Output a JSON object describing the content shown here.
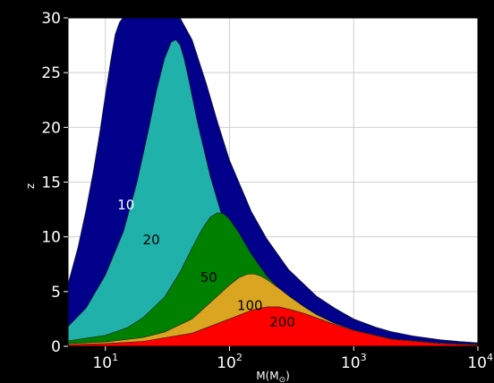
{
  "chart_data": {
    "type": "area",
    "xlabel": "M(M",
    "xlabel_sub": "⊙",
    "xlabel_close": ")",
    "ylabel": "z",
    "x_scale": "log",
    "xlim": [
      5,
      10000
    ],
    "ylim": [
      0,
      30
    ],
    "grid": true,
    "x_ticks": [
      {
        "base": "10",
        "exp": "1",
        "value": 10
      },
      {
        "base": "10",
        "exp": "2",
        "value": 100
      },
      {
        "base": "10",
        "exp": "3",
        "value": 1000
      },
      {
        "base": "10",
        "exp": "4",
        "value": 10000
      }
    ],
    "y_ticks": [
      "0",
      "5",
      "10",
      "15",
      "20",
      "25",
      "30"
    ],
    "series": [
      {
        "name": "10",
        "color": "#00008b",
        "label_color": "#ffffff",
        "label_at": [
          12.5,
          12.5
        ],
        "x": [
          5,
          6,
          7,
          8,
          9,
          10,
          11,
          12,
          13,
          13.8,
          14.5,
          26,
          28,
          30,
          34,
          40,
          50,
          65,
          80,
          100,
          150,
          200,
          300,
          500,
          700,
          1000,
          1500,
          2000,
          3000,
          5000,
          7000,
          10000
        ],
        "y": [
          5.7,
          9,
          12.5,
          16,
          19.5,
          23,
          26,
          28.5,
          29.6,
          30,
          30,
          30,
          30,
          30,
          30,
          30,
          28,
          24,
          20.5,
          17,
          12.3,
          9.8,
          7,
          4.6,
          3.5,
          2.5,
          1.75,
          1.35,
          0.95,
          0.6,
          0.45,
          0.32
        ]
      },
      {
        "name": "20",
        "color": "#20b2aa",
        "label_color": "#000000",
        "label_at": [
          20,
          9.3
        ],
        "x": [
          5,
          7,
          10,
          14,
          18,
          22,
          26,
          30,
          34,
          37,
          40,
          43,
          47,
          55,
          70,
          90,
          120,
          150,
          200,
          300,
          500,
          700,
          1000,
          2000,
          5000,
          10000
        ],
        "y": [
          1.8,
          3.5,
          6.5,
          10.5,
          15,
          19.5,
          23.5,
          26.3,
          27.8,
          28,
          27.5,
          26.3,
          24.3,
          20.5,
          15.5,
          11.3,
          8,
          6.3,
          4.7,
          3.2,
          2,
          1.5,
          1.1,
          0.55,
          0.3,
          0.2
        ]
      },
      {
        "name": "50",
        "color": "#008000",
        "label_color": "#000000",
        "label_at": [
          58,
          5.9
        ],
        "x": [
          5,
          10,
          15,
          20,
          30,
          40,
          50,
          60,
          70,
          80,
          90,
          100,
          120,
          150,
          200,
          300,
          500,
          1000,
          2000,
          5000,
          10000
        ],
        "y": [
          0.5,
          1,
          1.7,
          2.6,
          4.5,
          6.8,
          9,
          10.7,
          11.8,
          12.2,
          12.1,
          11.6,
          10.3,
          8.4,
          6.4,
          4.4,
          2.6,
          1.3,
          0.65,
          0.3,
          0.18
        ]
      },
      {
        "name": "100",
        "color": "#daa520",
        "label_color": "#000000",
        "label_at": [
          115,
          3.3
        ],
        "x": [
          5,
          10,
          20,
          30,
          50,
          70,
          100,
          120,
          140,
          160,
          180,
          200,
          250,
          300,
          400,
          500,
          700,
          1000,
          2000,
          5000,
          10000
        ],
        "y": [
          0.25,
          0.4,
          0.8,
          1.3,
          2.5,
          4,
          5.6,
          6.3,
          6.6,
          6.6,
          6.4,
          6.1,
          5.3,
          4.6,
          3.6,
          2.9,
          2.1,
          1.5,
          0.7,
          0.3,
          0.15
        ]
      },
      {
        "name": "200",
        "color": "#ff0000",
        "label_color": "#000000",
        "label_at": [
          210,
          1.8
        ],
        "x": [
          5,
          10,
          20,
          50,
          100,
          150,
          200,
          250,
          300,
          400,
          500,
          700,
          1000,
          2000,
          5000,
          10000
        ],
        "y": [
          0.15,
          0.25,
          0.45,
          1.2,
          2.5,
          3.3,
          3.6,
          3.6,
          3.4,
          3,
          2.6,
          2,
          1.45,
          0.65,
          0.25,
          0.12
        ]
      }
    ]
  }
}
